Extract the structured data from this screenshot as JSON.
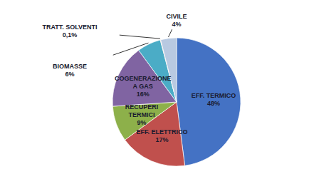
{
  "chart_data": {
    "type": "pie",
    "categories": [
      "EFF. TERMICO",
      "EFF. ELETTRICO",
      "RECUPERI\nTERMICI",
      "COGENERAZIONE\nA GAS",
      "BIOMASSE",
      "TRATT. SOLVENTI",
      "CIVILE"
    ],
    "values": [
      48,
      17,
      9,
      16,
      6,
      0.1,
      4
    ],
    "value_labels": [
      "48%",
      "17%",
      "9%",
      "16%",
      "6%",
      "0,1%",
      "4%"
    ],
    "colors": [
      "#4472C4",
      "#C0504D",
      "#8DB04A",
      "#8064A2",
      "#4BACC6",
      "#C47B3A",
      "#B8C9E1"
    ]
  }
}
